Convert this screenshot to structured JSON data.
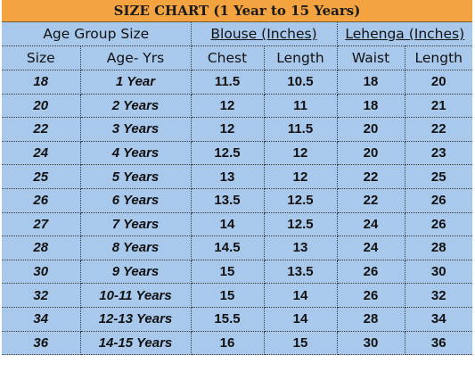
{
  "title": "SIZE CHART (1 Year to 15 Years)",
  "groups": {
    "age": "Age Group Size",
    "blouse": "Blouse (Inches)",
    "lehenga": "Lehenga (Inches)"
  },
  "columns": [
    "Size",
    "Age- Yrs",
    "Chest",
    "Length",
    "Waist",
    "Length"
  ],
  "rows": [
    [
      "18",
      "1 Year",
      "11.5",
      "10.5",
      "18",
      "20"
    ],
    [
      "20",
      "2 Years",
      "12",
      "11",
      "18",
      "21"
    ],
    [
      "22",
      "3 Years",
      "12",
      "11.5",
      "20",
      "22"
    ],
    [
      "24",
      "4 Years",
      "12.5",
      "12",
      "20",
      "23"
    ],
    [
      "25",
      "5 Years",
      "13",
      "12",
      "22",
      "25"
    ],
    [
      "26",
      "6 Years",
      "13.5",
      "12.5",
      "22",
      "26"
    ],
    [
      "27",
      "7 Years",
      "14",
      "12.5",
      "24",
      "26"
    ],
    [
      "28",
      "8 Years",
      "14.5",
      "13",
      "24",
      "28"
    ],
    [
      "30",
      "9 Years",
      "15",
      "13.5",
      "26",
      "30"
    ],
    [
      "32",
      "10-11 Years",
      "15",
      "14",
      "26",
      "32"
    ],
    [
      "34",
      "12-13 Years",
      "15.5",
      "14",
      "28",
      "34"
    ],
    [
      "36",
      "14-15 Years",
      "16",
      "15",
      "30",
      "36"
    ]
  ]
}
